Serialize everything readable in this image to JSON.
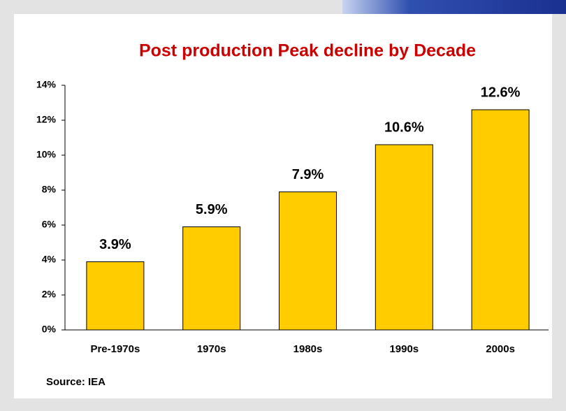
{
  "chart_data": {
    "type": "bar",
    "title": "Post production Peak decline by Decade",
    "categories": [
      "Pre-1970s",
      "1970s",
      "1980s",
      "1990s",
      "2000s"
    ],
    "values": [
      3.9,
      5.9,
      7.9,
      10.6,
      12.6
    ],
    "value_labels": [
      "3.9%",
      "5.9%",
      "7.9%",
      "10.6%",
      "12.6%"
    ],
    "color": "#ffcc00",
    "ylim": [
      0,
      14
    ],
    "yticks": [
      {
        "value": 0,
        "label": "0%"
      },
      {
        "value": 2,
        "label": "2%"
      },
      {
        "value": 4,
        "label": "4%"
      },
      {
        "value": 6,
        "label": "6%"
      },
      {
        "value": 8,
        "label": "8%"
      },
      {
        "value": 10,
        "label": "10%"
      },
      {
        "value": 12,
        "label": "12%"
      },
      {
        "value": 14,
        "label": "14%"
      }
    ],
    "grid": false,
    "source": "Source: IEA"
  }
}
